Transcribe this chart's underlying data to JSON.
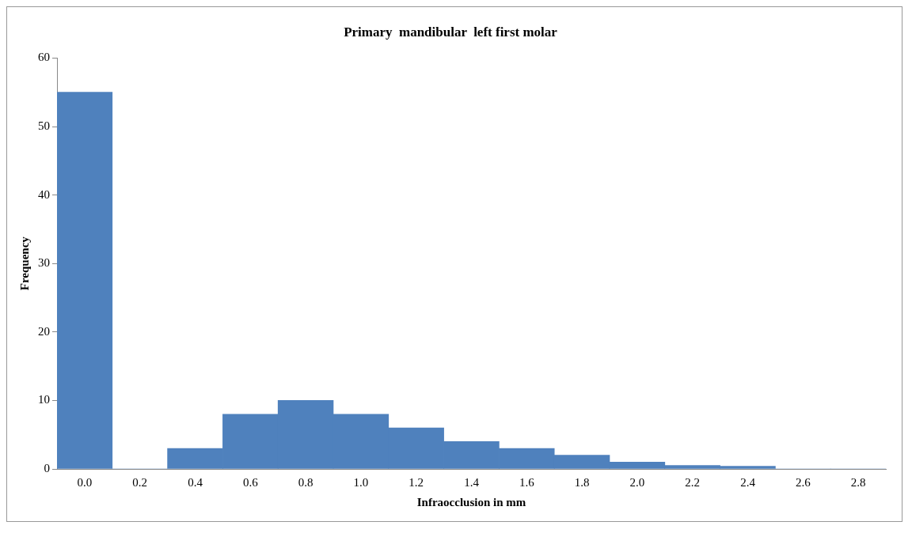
{
  "chart_data": {
    "type": "bar",
    "title": "Primary  mandibular  left first molar",
    "xlabel": "Infraocclusion in mm",
    "ylabel": "Frequency",
    "categories": [
      "0.0",
      "0.2",
      "0.4",
      "0.6",
      "0.8",
      "1.0",
      "1.2",
      "1.4",
      "1.6",
      "1.8",
      "2.0",
      "2.2",
      "2.4",
      "2.6",
      "2.8"
    ],
    "values": [
      55,
      0,
      3,
      8,
      10,
      8,
      6,
      4,
      3,
      2,
      1,
      0.5,
      0.4,
      0,
      0
    ],
    "color": "#4f81bd",
    "ylim": [
      0,
      60
    ],
    "yticks": [
      0,
      10,
      20,
      30,
      40,
      50,
      60
    ],
    "grid": false,
    "legend": false
  }
}
